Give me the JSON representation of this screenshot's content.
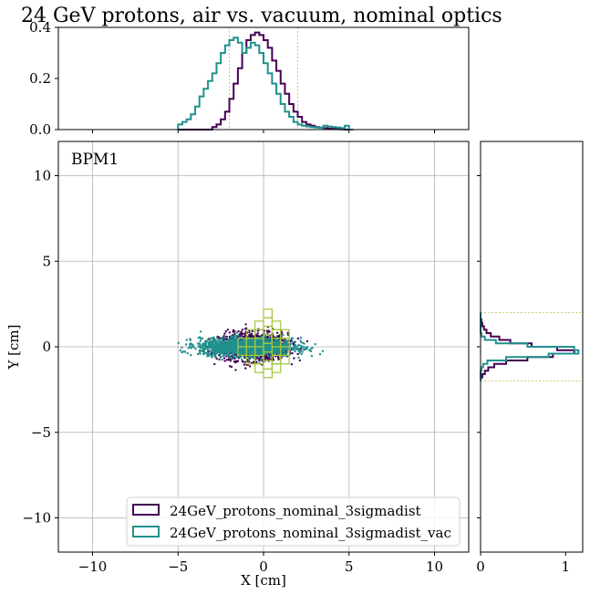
{
  "chart_data": {
    "type": "scatter",
    "title": "24 GeV protons, air vs. vacuum, nominal optics",
    "annotation": "BPM1",
    "main": {
      "xlabel": "X [cm]",
      "ylabel": "Y [cm]",
      "xlim": [
        -12,
        12
      ],
      "ylim": [
        -12,
        12
      ],
      "xticks": [
        -10,
        -5,
        0,
        5,
        10
      ],
      "yticks": [
        -10,
        -5,
        0,
        5,
        10
      ],
      "xtick_labels": [
        "−10",
        "−5",
        "0",
        "5",
        "10"
      ],
      "ytick_labels": [
        "−10",
        "−5",
        "0",
        "5",
        "10"
      ],
      "grid": true,
      "scatter_series": [
        {
          "color": "#440154",
          "x_center": -0.6,
          "x_sigma": 1.0,
          "x_range": [
            -3.3,
            3.0
          ],
          "y_sigma": 0.4,
          "y_range": [
            -1.4,
            1.4
          ]
        },
        {
          "color": "#21908d",
          "x_center": -1.0,
          "x_sigma": 1.35,
          "x_range": [
            -5.0,
            5.0
          ],
          "y_sigma": 0.25,
          "y_range": [
            -0.9,
            0.9
          ]
        }
      ],
      "overlay_boxes": {
        "color": "#a2c83c",
        "x_edges": [
          -1.5,
          -1.0,
          -0.5,
          0.0,
          0.5,
          1.0,
          1.5
        ],
        "columns": [
          {
            "x0": -1.5,
            "y": [
              -0.5,
              0.5
            ]
          },
          {
            "x0": -1.0,
            "y": [
              -1.0,
              1.0
            ]
          },
          {
            "x0": -0.5,
            "y": [
              -1.5,
              1.5
            ]
          },
          {
            "x0": 0.0,
            "y": [
              -1.8,
              1.8
            ]
          },
          {
            "x0": 0.5,
            "y": [
              -1.5,
              1.5
            ]
          },
          {
            "x0": 1.0,
            "y": [
              -1.0,
              1.0
            ]
          }
        ],
        "box_size": 0.5
      }
    },
    "top_hist": {
      "xlim": [
        -12,
        12
      ],
      "ylim": [
        0,
        0.4
      ],
      "yticks": [
        0.0,
        0.2,
        0.4
      ],
      "ytick_labels": [
        "0.0",
        "0.2",
        "0.4"
      ],
      "vlines": [
        -2,
        2
      ],
      "vline_color": "#c8b94a",
      "bin_start": -5.0,
      "bin_width": 0.25,
      "series": [
        {
          "name": "24GeV_protons_nominal_3sigmadist",
          "color": "#440154",
          "values": [
            0,
            0,
            0,
            0,
            0,
            0,
            0,
            0,
            0.01,
            0.02,
            0.04,
            0.07,
            0.12,
            0.18,
            0.24,
            0.3,
            0.35,
            0.37,
            0.38,
            0.37,
            0.35,
            0.32,
            0.27,
            0.23,
            0.18,
            0.14,
            0.1,
            0.07,
            0.05,
            0.03,
            0.02,
            0.015,
            0.01,
            0.008,
            0.006,
            0.004,
            0.003,
            0.002,
            0.001,
            0,
            0
          ]
        },
        {
          "name": "24GeV_protons_nominal_3sigmadist_vac",
          "color": "#21908d",
          "values": [
            0.02,
            0.03,
            0.04,
            0.06,
            0.09,
            0.13,
            0.16,
            0.19,
            0.22,
            0.26,
            0.3,
            0.33,
            0.35,
            0.36,
            0.34,
            0.3,
            0.32,
            0.34,
            0.33,
            0.3,
            0.26,
            0.22,
            0.18,
            0.14,
            0.1,
            0.07,
            0.05,
            0.03,
            0.02,
            0.015,
            0.012,
            0.01,
            0.008,
            0.007,
            0.015,
            0.012,
            0.01,
            0.008,
            0.006,
            0.015,
            0
          ]
        }
      ]
    },
    "right_hist": {
      "xlim": [
        0,
        1.2
      ],
      "ylim": [
        -12,
        12
      ],
      "xticks": [
        0,
        1
      ],
      "xtick_labels": [
        "0",
        "1"
      ],
      "hlines": [
        -2,
        2
      ],
      "hline_color": "#c8b94a",
      "bin_start": -2.0,
      "bin_width": 0.2,
      "series": [
        {
          "name": "24GeV_protons_nominal_3sigmadist",
          "color": "#440154",
          "values": [
            0,
            0.02,
            0.05,
            0.09,
            0.16,
            0.3,
            0.55,
            0.85,
            1.1,
            0.9,
            0.6,
            0.35,
            0.22,
            0.12,
            0.07,
            0.04,
            0.02,
            0.01,
            0,
            0
          ]
        },
        {
          "name": "24GeV_protons_nominal_3sigmadist_vac",
          "color": "#21908d",
          "values": [
            0,
            0,
            0,
            0.01,
            0.03,
            0.08,
            0.3,
            0.8,
            1.15,
            1.1,
            0.55,
            0.18,
            0.05,
            0.01,
            0,
            0,
            0,
            0,
            0,
            0
          ]
        }
      ]
    },
    "legend": {
      "placement": "lower-center",
      "entries": [
        {
          "label": "24GeV_protons_nominal_3sigmadist",
          "color": "#440154"
        },
        {
          "label": "24GeV_protons_nominal_3sigmadist_vac",
          "color": "#21908d"
        }
      ]
    }
  }
}
